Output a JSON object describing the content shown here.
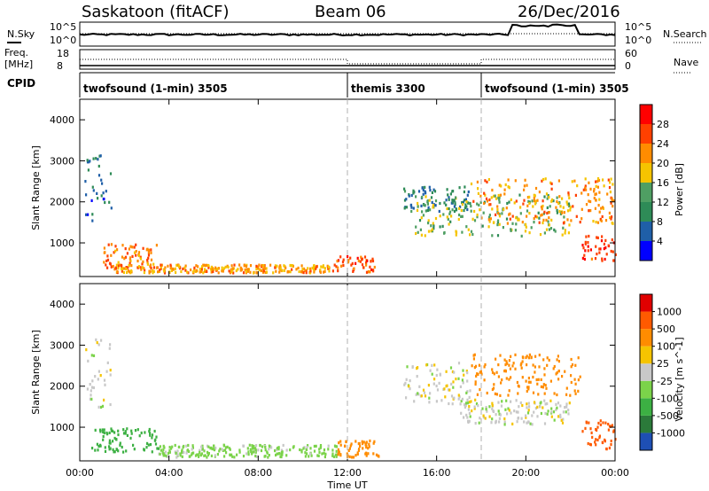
{
  "header": {
    "station": "Saskatoon (fitACF)",
    "beam": "Beam 06",
    "date": "26/Dec/2016"
  },
  "summary_panel": {
    "left_label_1": "N.Sky",
    "left_label_2": "Freq.",
    "left_label_2b": "[MHz]",
    "left_label_3": "CPID",
    "right_label_1": "N.Search",
    "right_label_2": "Nave",
    "left_ticks_top": [
      "10^5",
      "10^0"
    ],
    "left_ticks_freq": [
      "18",
      "8"
    ],
    "right_ticks_top": [
      "10^5",
      "10^0"
    ],
    "right_ticks_nave": [
      "60",
      "0"
    ]
  },
  "cpid_segments": [
    {
      "label": "twofsound (1-min) 3505",
      "start_hour": 0
    },
    {
      "label": "themis 3300",
      "start_hour": 12
    },
    {
      "label": "twofsound (1-min) 3505",
      "start_hour": 18
    }
  ],
  "power_legend": {
    "title": "Power [dB]",
    "colors": [
      "#0000ff",
      "#1f5fa8",
      "#2e8b57",
      "#4f9f63",
      "#f5c400",
      "#ff8c00",
      "#ff4000",
      "#ff0000"
    ],
    "tick_labels": [
      "4",
      "8",
      "12",
      "16",
      "20",
      "24",
      "28"
    ]
  },
  "velocity_legend": {
    "title": "Velocity [m s^-1]",
    "colors": [
      "#1e4fb4",
      "#2b7a3a",
      "#3cb043",
      "#7bd34a",
      "#c8c8c8",
      "#f5c400",
      "#ff8c00",
      "#ff5a00",
      "#e00000"
    ],
    "tick_labels": [
      "1000",
      "500",
      "100",
      "25",
      "-25",
      "-100",
      "-500",
      "-1000"
    ]
  },
  "x_axis": {
    "label": "Time UT",
    "tick_labels": [
      "00:00",
      "04:00",
      "08:00",
      "12:00",
      "16:00",
      "20:00",
      "00:00"
    ]
  },
  "y_axis": {
    "label": "Slant Range [km]",
    "tick_labels": [
      "1000",
      "2000",
      "3000",
      "4000"
    ]
  },
  "chart_data": [
    {
      "type": "heatmap",
      "title": "",
      "xlabel": "Time UT",
      "ylabel": "Slant Range [km]",
      "xlim": [
        0,
        24
      ],
      "ylim": [
        180,
        4500
      ],
      "colorbar": "Power [dB]",
      "colorbar_range": [
        0,
        30
      ],
      "regions": [
        {
          "t0": 0.2,
          "t1": 1.4,
          "r0": 1500,
          "r1": 3200,
          "power": 6
        },
        {
          "t0": 1.0,
          "t1": 3.5,
          "r0": 400,
          "r1": 1000,
          "power": 22
        },
        {
          "t0": 1.5,
          "t1": 11.5,
          "r0": 300,
          "r1": 500,
          "power": 20
        },
        {
          "t0": 11.5,
          "t1": 13.2,
          "r0": 300,
          "r1": 700,
          "power": 24
        },
        {
          "t0": 14.5,
          "t1": 17.5,
          "r0": 1800,
          "r1": 2400,
          "power": 8
        },
        {
          "t0": 15.0,
          "t1": 22.0,
          "r0": 1200,
          "r1": 2200,
          "power": 14
        },
        {
          "t0": 17.5,
          "t1": 24.0,
          "r0": 1500,
          "r1": 2600,
          "power": 20
        },
        {
          "t0": 22.5,
          "t1": 24.0,
          "r0": 600,
          "r1": 1200,
          "power": 26
        }
      ]
    },
    {
      "type": "heatmap",
      "title": "",
      "xlabel": "Time UT",
      "ylabel": "Slant Range [km]",
      "xlim": [
        0,
        24
      ],
      "ylim": [
        180,
        4500
      ],
      "colorbar": "Velocity [m s^-1]",
      "colorbar_range": [
        -1000,
        1000
      ],
      "regions": [
        {
          "t0": 0.2,
          "t1": 1.4,
          "r0": 1500,
          "r1": 3200,
          "velocity": 0
        },
        {
          "t0": 0.5,
          "t1": 3.5,
          "r0": 400,
          "r1": 1000,
          "velocity": 150
        },
        {
          "t0": 3.5,
          "t1": 11.5,
          "r0": 300,
          "r1": 600,
          "velocity": 50
        },
        {
          "t0": 11.5,
          "t1": 13.5,
          "r0": 300,
          "r1": 700,
          "velocity": -150
        },
        {
          "t0": 14.5,
          "t1": 17.5,
          "r0": 1600,
          "r1": 2600,
          "velocity": 0
        },
        {
          "t0": 17.0,
          "t1": 22.0,
          "r0": 1100,
          "r1": 1700,
          "velocity": 0
        },
        {
          "t0": 17.5,
          "t1": 22.5,
          "r0": 1800,
          "r1": 2800,
          "velocity": -200
        },
        {
          "t0": 22.5,
          "t1": 24.0,
          "r0": 500,
          "r1": 1200,
          "velocity": -600
        }
      ]
    }
  ]
}
